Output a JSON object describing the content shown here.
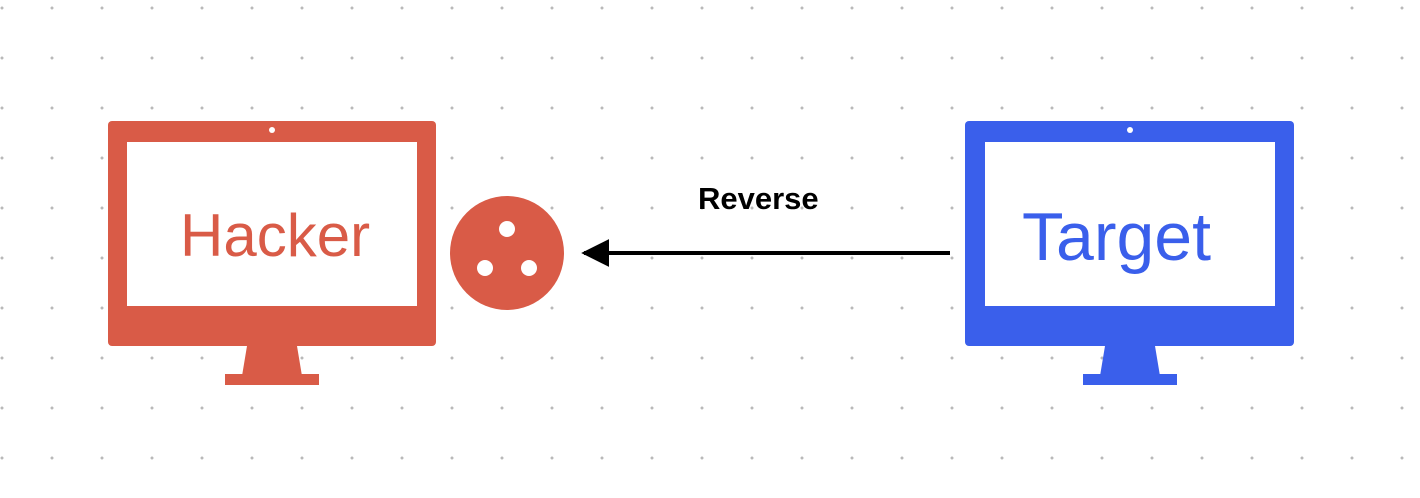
{
  "nodes": {
    "hacker": {
      "label": "Hacker",
      "color": "#D95B47",
      "icon": "monitor-icon"
    },
    "listener": {
      "icon": "socket-port-icon",
      "color": "#D95B47"
    },
    "target": {
      "label": "Target",
      "color": "#3A5FEB",
      "icon": "monitor-icon"
    }
  },
  "edges": [
    {
      "from": "target",
      "to": "listener",
      "label": "Reverse",
      "color": "#000000"
    }
  ]
}
